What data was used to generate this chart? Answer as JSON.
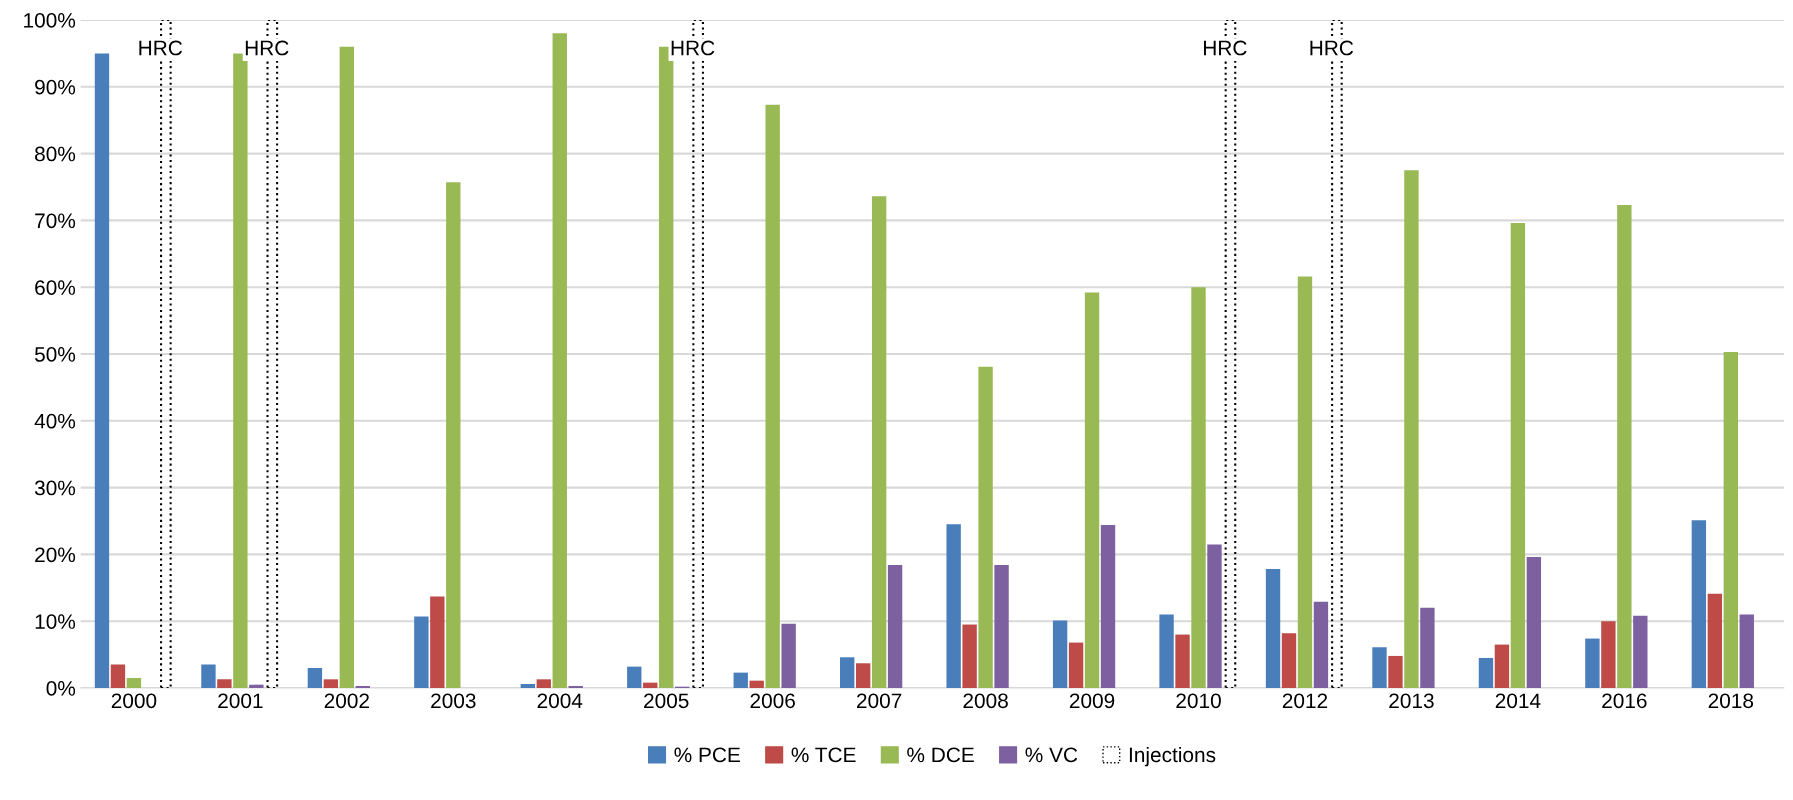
{
  "chart_data": {
    "type": "bar",
    "categories": [
      "2000",
      "2001",
      "2002",
      "2003",
      "2004",
      "2005",
      "2006",
      "2007",
      "2008",
      "2009",
      "2010",
      "2012",
      "2013",
      "2014",
      "2016",
      "2018"
    ],
    "series": [
      {
        "name": "% PCE",
        "color": "#4a7ebb",
        "values": [
          95,
          3.5,
          3,
          10.7,
          0.6,
          3.2,
          2.3,
          4.6,
          24.5,
          10.1,
          11,
          17.8,
          6.1,
          4.5,
          7.4,
          25.1
        ]
      },
      {
        "name": "% TCE",
        "color": "#be4b48",
        "values": [
          3.5,
          1.3,
          1.3,
          13.7,
          1.3,
          0.8,
          1.1,
          3.7,
          9.5,
          6.8,
          8,
          8.2,
          4.8,
          6.5,
          10,
          14.1
        ]
      },
      {
        "name": "% DCE",
        "color": "#98b954",
        "values": [
          1.5,
          95,
          96,
          75.7,
          98,
          96,
          87.3,
          73.6,
          48.1,
          59.2,
          60,
          61.6,
          77.5,
          69.6,
          72.3,
          50.3
        ]
      },
      {
        "name": "% VC",
        "color": "#7d60a0",
        "values": [
          0,
          0.5,
          0.3,
          0,
          0.3,
          0.2,
          9.6,
          18.4,
          18.4,
          24.4,
          21.5,
          12.9,
          12,
          19.6,
          10.8,
          11
        ]
      },
      {
        "name": "Injections",
        "color": "#000000",
        "line_style": "dotted",
        "values": [
          100,
          100,
          null,
          null,
          null,
          100,
          null,
          null,
          null,
          null,
          100,
          100,
          null,
          null,
          null,
          null
        ]
      }
    ],
    "ylim": [
      0,
      100
    ],
    "yticks": [
      {
        "value": 0,
        "label": "0%"
      },
      {
        "value": 10,
        "label": "10%"
      },
      {
        "value": 20,
        "label": "20%"
      },
      {
        "value": 30,
        "label": "30%"
      },
      {
        "value": 40,
        "label": "40%"
      },
      {
        "value": 50,
        "label": "50%"
      },
      {
        "value": 60,
        "label": "60%"
      },
      {
        "value": 70,
        "label": "70%"
      },
      {
        "value": 80,
        "label": "80%"
      },
      {
        "value": 90,
        "label": "90%"
      },
      {
        "value": 100,
        "label": "100%"
      }
    ],
    "annotations": [
      "HRC",
      "HRC",
      "HRC",
      "HRC",
      "HRC"
    ],
    "grid": "y",
    "legend": "bottom"
  }
}
